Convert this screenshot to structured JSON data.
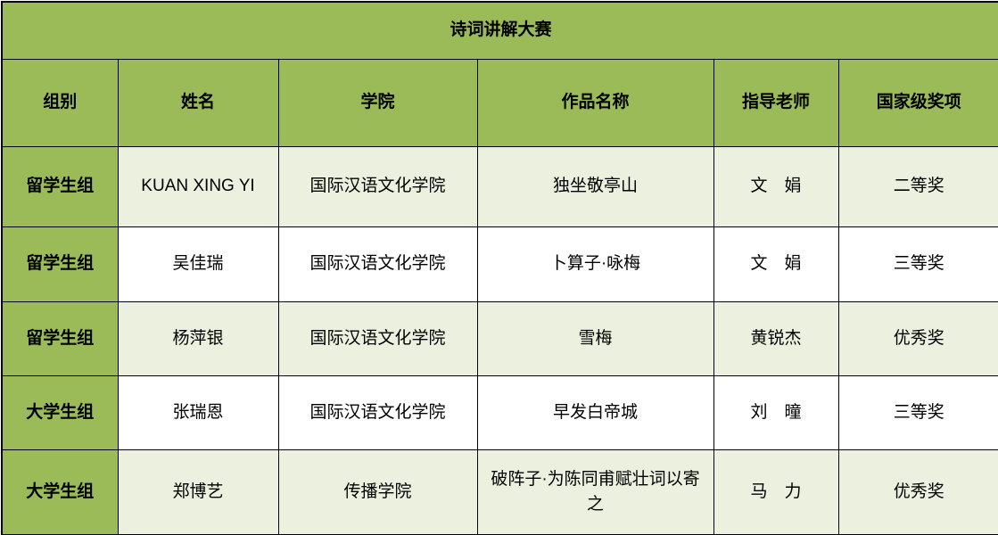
{
  "title": "诗词讲解大赛",
  "colors": {
    "accent_green": "#9bbb59",
    "row_light": "#ebf1de",
    "row_white": "#ffffff",
    "border": "#000000",
    "text": "#000000"
  },
  "table": {
    "headers": [
      "组别",
      "姓名",
      "学院",
      "作品名称",
      "指导老师",
      "国家级奖项"
    ],
    "rows": [
      [
        "留学生组",
        "KUAN XING YI",
        "国际汉语文化学院",
        "独坐敬亭山",
        "文　娟",
        "二等奖"
      ],
      [
        "留学生组",
        "吴佳瑞",
        "国际汉语文化学院",
        "卜算子·咏梅",
        "文　娟",
        "三等奖"
      ],
      [
        "留学生组",
        "杨萍银",
        "国际汉语文化学院",
        "雪梅",
        "黄锐杰",
        "优秀奖"
      ],
      [
        "大学生组",
        "张瑞恩",
        "国际汉语文化学院",
        "早发白帝城",
        "刘　曈",
        "三等奖"
      ],
      [
        "大学生组",
        "郑博艺",
        "传播学院",
        "破阵子·为陈同甫赋壮词以寄之",
        "马　力",
        "优秀奖"
      ]
    ]
  }
}
